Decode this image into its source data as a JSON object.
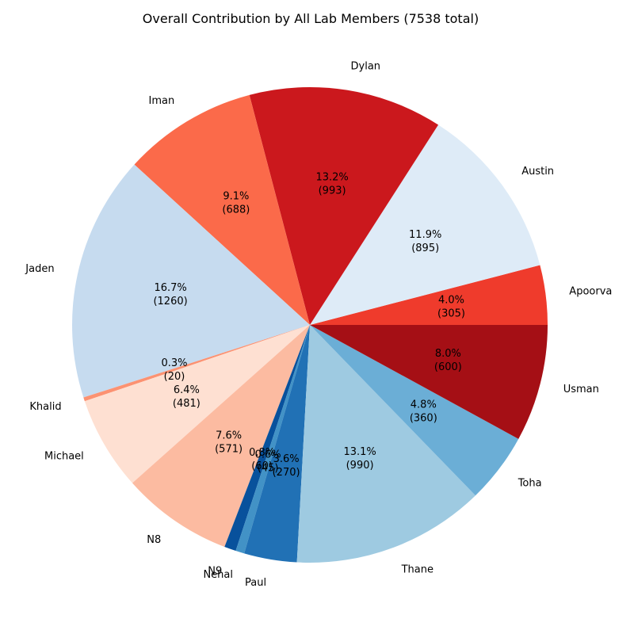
{
  "chart_data": {
    "type": "pie",
    "title": "Overall Contribution by All Lab Members (7538 total)",
    "total": 7538,
    "start_angle_deg": 0,
    "direction": "counterclockwise",
    "slices": [
      {
        "name": "Apoorva",
        "value": 305,
        "percent": "4.0%",
        "color": "#ef3b2c"
      },
      {
        "name": "Austin",
        "value": 895,
        "percent": "11.9%",
        "color": "#deebf7"
      },
      {
        "name": "Dylan",
        "value": 993,
        "percent": "13.2%",
        "color": "#cb181d"
      },
      {
        "name": "Iman",
        "value": 688,
        "percent": "9.1%",
        "color": "#fb6a4a"
      },
      {
        "name": "Jaden",
        "value": 1260,
        "percent": "16.7%",
        "color": "#c6dbef"
      },
      {
        "name": "Khalid",
        "value": 20,
        "percent": "0.3%",
        "color": "#fc9272"
      },
      {
        "name": "Michael",
        "value": 481,
        "percent": "6.4%",
        "color": "#fee0d2"
      },
      {
        "name": "N8",
        "value": 571,
        "percent": "7.6%",
        "color": "#fcbba1"
      },
      {
        "name": "N9",
        "value": 60,
        "percent": "0.8%",
        "color": "#08519c"
      },
      {
        "name": "Nehal",
        "value": 45,
        "percent": "0.6%",
        "color": "#4292c6"
      },
      {
        "name": "Paul",
        "value": 270,
        "percent": "3.6%",
        "color": "#2171b5"
      },
      {
        "name": "Thane",
        "value": 990,
        "percent": "13.1%",
        "color": "#9ecae1"
      },
      {
        "name": "Toha",
        "value": 360,
        "percent": "4.8%",
        "color": "#6baed6"
      },
      {
        "name": "Usman",
        "value": 600,
        "percent": "8.0%",
        "color": "#a50f15"
      }
    ]
  }
}
